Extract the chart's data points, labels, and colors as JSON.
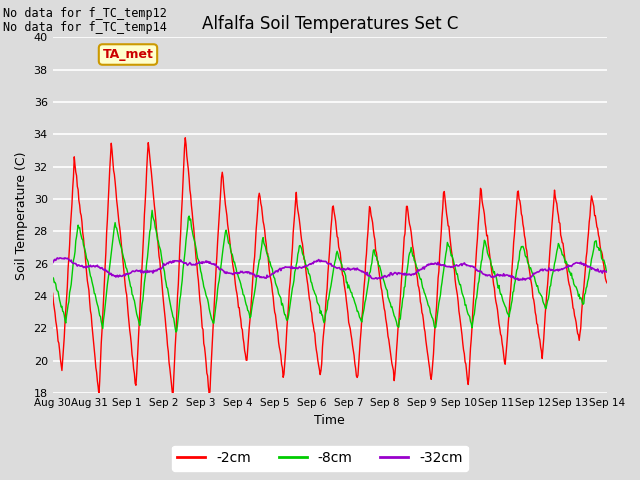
{
  "title": "Alfalfa Soil Temperatures Set C",
  "xlabel": "Time",
  "ylabel": "Soil Temperature (C)",
  "no_data_text_1": "No data for f_TC_temp12",
  "no_data_text_2": "No data for f_TC_temp14",
  "ta_met_label": "TA_met",
  "ylim": [
    18,
    40
  ],
  "yticks": [
    18,
    20,
    22,
    24,
    26,
    28,
    30,
    32,
    34,
    36,
    38,
    40
  ],
  "x_tick_labels": [
    "Aug 30",
    "Aug 31",
    "Sep 1",
    "Sep 2",
    "Sep 3",
    "Sep 4",
    "Sep 5",
    "Sep 6",
    "Sep 7",
    "Sep 8",
    "Sep 9",
    "Sep 10",
    "Sep 11",
    "Sep 12",
    "Sep 13",
    "Sep 14"
  ],
  "bg_color": "#dcdcdc",
  "line_colors": {
    "2cm": "#ff0000",
    "8cm": "#00cc00",
    "32cm": "#9900cc"
  },
  "line_labels": [
    "-2cm",
    "-8cm",
    "-32cm"
  ],
  "legend_colors": [
    "#ff0000",
    "#00cc00",
    "#9900cc"
  ],
  "num_days": 15,
  "pts_per_day": 48
}
